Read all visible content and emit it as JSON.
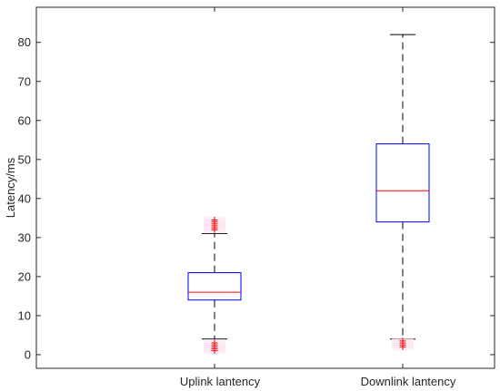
{
  "chart_data": {
    "type": "box",
    "title": "",
    "xlabel": "",
    "ylabel": "Latency/ms",
    "ylim": [
      -3.5,
      89
    ],
    "yticks": [
      0,
      10,
      20,
      30,
      40,
      50,
      60,
      70,
      80
    ],
    "grid": false,
    "categories": [
      "Uplink lantency",
      "Downlink lantency"
    ],
    "boxes": [
      {
        "category": "Uplink lantency",
        "whisker_low": 4,
        "q1": 14,
        "median": 16,
        "q3": 21,
        "whisker_high": 31,
        "outliers_low": [
          1,
          1.5,
          2,
          2.5,
          3
        ],
        "outliers_high": [
          32,
          32.5,
          33,
          33.5,
          34,
          34.5
        ]
      },
      {
        "category": "Downlink lantency",
        "whisker_low": 4,
        "q1": 34,
        "median": 42,
        "q3": 54,
        "whisker_high": 82,
        "outliers_low": [
          2,
          2.5,
          3,
          3.5
        ],
        "outliers_high": []
      }
    ],
    "colors": {
      "box": "#0000ff",
      "median": "#ff0000",
      "whisker": "#000000",
      "outlier": "#ff0000",
      "outlier_shadow": "#ffe8f4",
      "axis": "#262626"
    }
  }
}
